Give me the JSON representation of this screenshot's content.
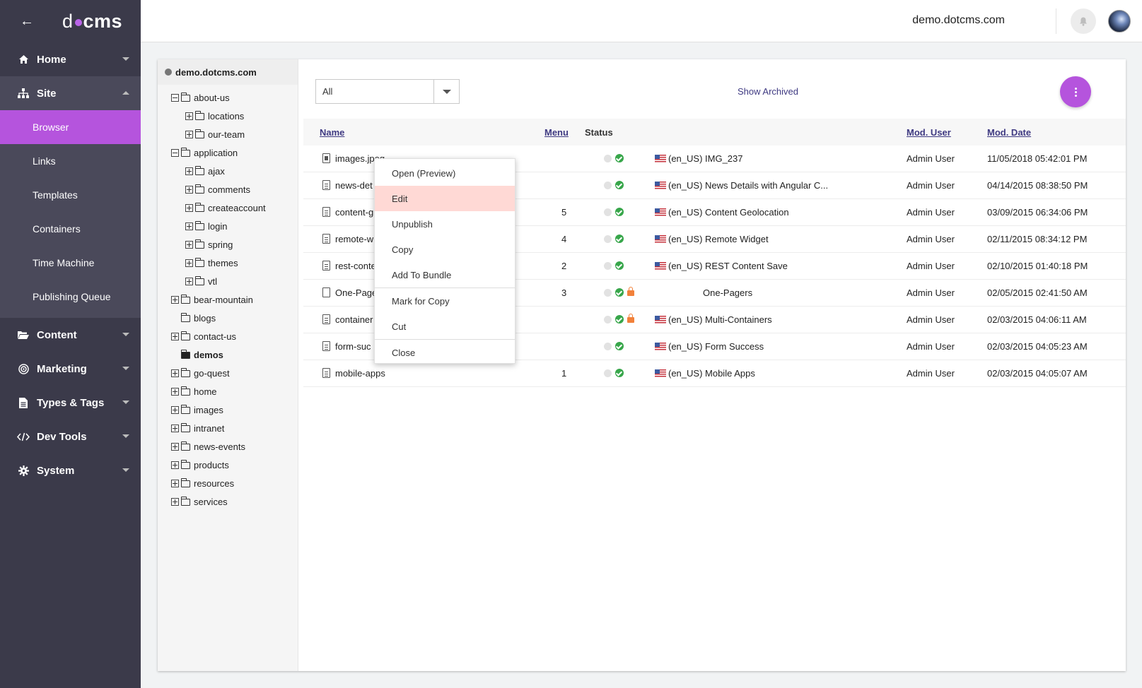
{
  "sidebar": {
    "logo": {
      "left": "d",
      "right": "cms"
    },
    "groups": {
      "home": "Home",
      "site": "Site",
      "content": "Content",
      "marketing": "Marketing",
      "types": "Types & Tags",
      "devtools": "Dev Tools",
      "system": "System"
    },
    "site_items": [
      "Browser",
      "Links",
      "Templates",
      "Containers",
      "Time Machine",
      "Publishing Queue"
    ]
  },
  "topbar": {
    "site_name": "demo.dotcms.com"
  },
  "tree": {
    "root": "demo.dotcms.com",
    "items": [
      "about-us",
      "locations",
      "our-team",
      "application",
      "ajax",
      "comments",
      "createaccount",
      "login",
      "spring",
      "themes",
      "vtl",
      "bear-mountain",
      "blogs",
      "contact-us",
      "demos",
      "go-quest",
      "home",
      "images",
      "intranet",
      "news-events",
      "products",
      "resources",
      "services"
    ]
  },
  "toolbar": {
    "filter_value": "All",
    "show_archived": "Show Archived"
  },
  "table": {
    "headers": {
      "name": "Name",
      "menu": "Menu",
      "status": "Status",
      "mod_user": "Mod. User",
      "mod_date": "Mod. Date"
    },
    "rows": [
      {
        "name": "images.jpeg",
        "menu": "",
        "title": "(en_US) IMG_237",
        "user": "Admin User",
        "date": "11/05/2018 05:42:01 PM"
      },
      {
        "name": "news-det",
        "menu": "",
        "title": "(en_US) News Details with Angular C...",
        "user": "Admin User",
        "date": "04/14/2015 08:38:50 PM"
      },
      {
        "name": "content-g",
        "menu": "5",
        "title": "(en_US) Content Geolocation",
        "user": "Admin User",
        "date": "03/09/2015 06:34:06 PM"
      },
      {
        "name": "remote-w",
        "menu": "4",
        "title": "(en_US) Remote Widget",
        "user": "Admin User",
        "date": "02/11/2015 08:34:12 PM"
      },
      {
        "name": "rest-conte",
        "menu": "2",
        "title": "(en_US) REST Content Save",
        "user": "Admin User",
        "date": "02/10/2015 01:40:18 PM"
      },
      {
        "name": "One-Page",
        "menu": "3",
        "title": "One-Pagers",
        "user": "Admin User",
        "date": "02/05/2015 02:41:50 AM"
      },
      {
        "name": "container",
        "menu": "",
        "title": "(en_US) Multi-Containers",
        "user": "Admin User",
        "date": "02/03/2015 04:06:11 AM"
      },
      {
        "name": "form-suc",
        "menu": "",
        "title": "(en_US) Form Success",
        "user": "Admin User",
        "date": "02/03/2015 04:05:23 AM"
      },
      {
        "name": "mobile-apps",
        "menu": "1",
        "title": "(en_US) Mobile Apps",
        "user": "Admin User",
        "date": "02/03/2015 04:05:07 AM"
      }
    ]
  },
  "context_menu": {
    "items": [
      "Open (Preview)",
      "Edit",
      "Unpublish",
      "Copy",
      "Add To Bundle",
      "Mark for Copy",
      "Cut",
      "Close"
    ]
  },
  "colors": {
    "accent": "#b554dd",
    "sidebar_bg": "#3b3a4a",
    "link": "#3f3a82",
    "highlight": "#ffd9d5"
  }
}
